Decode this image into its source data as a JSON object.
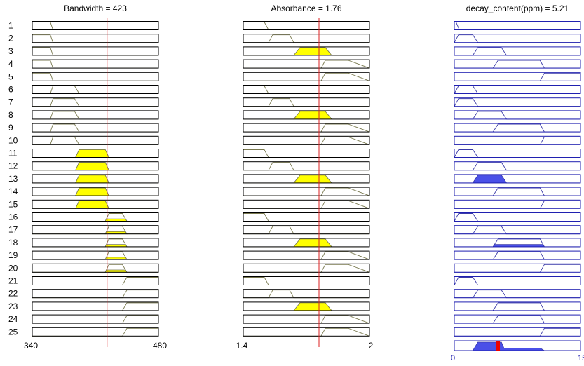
{
  "rule_count": 25,
  "colors": {
    "fill_input": "#ffff00",
    "fill_output": "#4a50e8",
    "curve_input": "#7a7a50",
    "curve_output": "#3a3aa8",
    "frame_input": "#000000",
    "frame_output": "#2020b0",
    "marker_line": "#dd2222",
    "output_marker": "#ee0000",
    "output_axis_label": "#2020b0"
  },
  "panels": [
    {
      "title": "Bandwidth = 423",
      "min": 340,
      "max": 480,
      "value": 423,
      "min_label": "340",
      "max_label": "480",
      "kind": "input",
      "mf_names": [
        "low",
        "med",
        "high",
        "vhigh"
      ],
      "mfs": {
        "low": [
          340,
          340,
          360,
          363
        ],
        "med": [
          360,
          363,
          387,
          392
        ],
        "high": [
          388,
          392,
          421,
          425
        ],
        "vhigh": [
          421,
          425,
          440,
          445
        ]
      },
      "rules": [
        {
          "mf": "low",
          "active": false
        },
        {
          "mf": "low",
          "active": false
        },
        {
          "mf": "low",
          "active": false
        },
        {
          "mf": "low",
          "active": false
        },
        {
          "mf": "low",
          "active": false
        },
        {
          "mf": "med",
          "active": false
        },
        {
          "mf": "med",
          "active": false
        },
        {
          "mf": "med",
          "active": false
        },
        {
          "mf": "med",
          "active": false
        },
        {
          "mf": "med",
          "active": false
        },
        {
          "mf": "high",
          "active": true,
          "level": 1.0
        },
        {
          "mf": "high",
          "active": true,
          "level": 1.0
        },
        {
          "mf": "high",
          "active": true,
          "level": 1.0
        },
        {
          "mf": "high",
          "active": true,
          "level": 1.0
        },
        {
          "mf": "high",
          "active": true,
          "level": 1.0
        },
        {
          "mf": "vhigh",
          "active": true,
          "level": 0.3
        },
        {
          "mf": "vhigh",
          "active": true,
          "level": 0.3
        },
        {
          "mf": "vhigh",
          "active": true,
          "level": 0.3
        },
        {
          "mf": "vhigh",
          "active": true,
          "level": 0.3
        },
        {
          "mf": "vhigh",
          "active": true,
          "level": 0.3
        },
        {
          "mf": "ramp",
          "active": false
        },
        {
          "mf": "ramp",
          "active": false
        },
        {
          "mf": "ramp",
          "active": false
        },
        {
          "mf": "ramp",
          "active": false
        },
        {
          "mf": "ramp",
          "active": false
        }
      ],
      "extra_mfs": {
        "ramp": [
          440,
          445,
          480,
          480
        ]
      }
    },
    {
      "title": "Absorbance = 1.76",
      "min": 1.4,
      "max": 2.0,
      "value": 1.76,
      "min_label": "1.4",
      "max_label": "2",
      "kind": "input",
      "mfs": {
        "low": [
          1.4,
          1.4,
          1.5,
          1.52
        ],
        "mid": [
          1.52,
          1.54,
          1.62,
          1.64
        ],
        "peak": [
          1.64,
          1.67,
          1.79,
          1.82
        ],
        "ramp": [
          1.77,
          1.79,
          1.9,
          2.0
        ]
      },
      "rules": [
        {
          "mf": "low",
          "active": false
        },
        {
          "mf": "mid",
          "active": false
        },
        {
          "mf": "peak",
          "active": true,
          "level": 1.0
        },
        {
          "mf": "ramp",
          "active": false
        },
        {
          "mf": "ramp",
          "active": false
        },
        {
          "mf": "low",
          "active": false
        },
        {
          "mf": "mid",
          "active": false
        },
        {
          "mf": "peak",
          "active": true,
          "level": 1.0
        },
        {
          "mf": "ramp",
          "active": false
        },
        {
          "mf": "ramp",
          "active": false
        },
        {
          "mf": "low",
          "active": false
        },
        {
          "mf": "mid",
          "active": false
        },
        {
          "mf": "peak",
          "active": true,
          "level": 1.0
        },
        {
          "mf": "ramp",
          "active": false
        },
        {
          "mf": "ramp",
          "active": false
        },
        {
          "mf": "low",
          "active": false
        },
        {
          "mf": "mid",
          "active": false
        },
        {
          "mf": "peak",
          "active": true,
          "level": 1.0
        },
        {
          "mf": "ramp",
          "active": false
        },
        {
          "mf": "ramp",
          "active": false
        },
        {
          "mf": "low",
          "active": false
        },
        {
          "mf": "mid",
          "active": false
        },
        {
          "mf": "peak",
          "active": true,
          "level": 1.0
        },
        {
          "mf": "ramp",
          "active": false
        },
        {
          "mf": "ramp",
          "active": false
        }
      ]
    },
    {
      "title": "decay_content(ppm) = 5.21",
      "min": 0,
      "max": 15,
      "value": 5.21,
      "min_label": "0",
      "max_label": "15",
      "kind": "output",
      "mfs": {
        "z": [
          0,
          0,
          0.2,
          0.6
        ],
        "s": [
          0,
          0.5,
          2.2,
          2.8
        ],
        "m": [
          2.2,
          2.8,
          5.6,
          6.2
        ],
        "l": [
          4.6,
          5.2,
          10.2,
          10.7
        ],
        "xl": [
          10.2,
          10.7,
          15,
          15
        ]
      },
      "rules": [
        {
          "mf": "z",
          "active": false
        },
        {
          "mf": "s",
          "active": false
        },
        {
          "mf": "m",
          "active": false
        },
        {
          "mf": "l",
          "active": false
        },
        {
          "mf": "xl",
          "active": false
        },
        {
          "mf": "s",
          "active": false
        },
        {
          "mf": "s",
          "active": false
        },
        {
          "mf": "m",
          "active": false
        },
        {
          "mf": "l",
          "active": false
        },
        {
          "mf": "xl",
          "active": false
        },
        {
          "mf": "s",
          "active": false
        },
        {
          "mf": "m",
          "active": false
        },
        {
          "mf": "m",
          "active": true,
          "level": 1.0
        },
        {
          "mf": "l",
          "active": false
        },
        {
          "mf": "xl",
          "active": false
        },
        {
          "mf": "s",
          "active": false
        },
        {
          "mf": "m",
          "active": false
        },
        {
          "mf": "l",
          "active": true,
          "level": 0.3
        },
        {
          "mf": "l",
          "active": false
        },
        {
          "mf": "xl",
          "active": false
        },
        {
          "mf": "s",
          "active": false
        },
        {
          "mf": "m",
          "active": false
        },
        {
          "mf": "l",
          "active": false
        },
        {
          "mf": "l",
          "active": false
        },
        {
          "mf": "xl",
          "active": false
        }
      ],
      "aggregate": {
        "points": [
          [
            0,
            0
          ],
          [
            2.2,
            0
          ],
          [
            2.8,
            1.0
          ],
          [
            5.6,
            1.0
          ],
          [
            5.9,
            0.3
          ],
          [
            10.2,
            0.3
          ],
          [
            10.7,
            0
          ],
          [
            15,
            0
          ]
        ],
        "marker_value": 5.21
      }
    }
  ]
}
